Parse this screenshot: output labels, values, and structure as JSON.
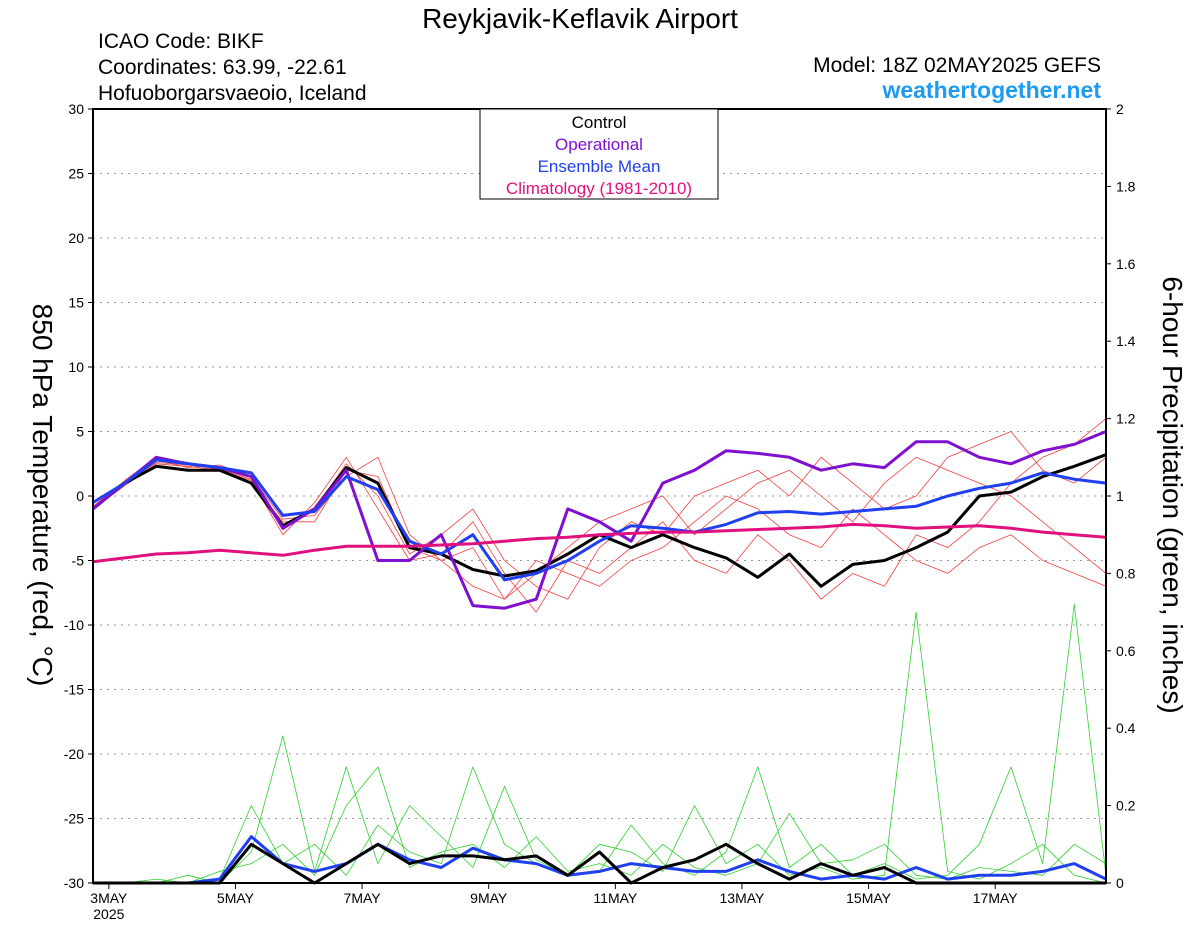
{
  "chart_data": {
    "type": "line",
    "title": "Reykjavik-Keflavik Airport",
    "info_left": [
      "ICAO Code: BIKF",
      "Coordinates: 63.99, -22.61",
      "Hofuoborgarsvaeoio, Iceland"
    ],
    "model": "Model: 18Z 02MAY2025 GEFS",
    "site": "weathertogether.net",
    "y_label": "850 hPa Temperature (red, °C)",
    "y2_label": "6-hour Precipitation (green, inches)",
    "x_year_label": "2025",
    "xlim": [
      2.75,
      18.75
    ],
    "xticks": [
      {
        "value": 3,
        "label": "3MAY"
      },
      {
        "value": 5,
        "label": "5MAY"
      },
      {
        "value": 7,
        "label": "7MAY"
      },
      {
        "value": 9,
        "label": "9MAY"
      },
      {
        "value": 11,
        "label": "11MAY"
      },
      {
        "value": 13,
        "label": "13MAY"
      },
      {
        "value": 15,
        "label": "15MAY"
      },
      {
        "value": 17,
        "label": "17MAY"
      }
    ],
    "ylim": [
      -30,
      30
    ],
    "yticks": [
      -30,
      -25,
      -20,
      -15,
      -10,
      -5,
      0,
      5,
      10,
      15,
      20,
      25,
      30
    ],
    "y2lim": [
      0,
      2
    ],
    "y2ticks": [
      0,
      0.2,
      0.4,
      0.6,
      0.8,
      1,
      1.2,
      1.4,
      1.6,
      1.8,
      2
    ],
    "grid": true,
    "x": [
      2.75,
      3.25,
      3.75,
      4.25,
      4.75,
      5.25,
      5.75,
      6.25,
      6.75,
      7.25,
      7.75,
      8.25,
      8.75,
      9.25,
      9.75,
      10.25,
      10.75,
      11.25,
      11.75,
      12.25,
      12.75,
      13.25,
      13.75,
      14.25,
      14.75,
      15.25,
      15.75,
      16.25,
      16.75,
      17.25,
      17.75,
      18.25,
      18.75
    ],
    "series": [
      {
        "color": "#f04040",
        "values": [
          -1,
          0.8,
          2.5,
          2.3,
          2,
          1,
          -2,
          -2,
          2,
          1.5,
          -4,
          -5,
          -7,
          -8,
          -6,
          -4,
          -2,
          -1,
          0,
          -3,
          -1,
          1,
          2,
          0,
          -2,
          1,
          3,
          2,
          1,
          0,
          -2,
          -4,
          -6
        ]
      },
      {
        "color": "#f04040",
        "values": [
          -0.8,
          1.2,
          3,
          2.6,
          2,
          1.2,
          -3,
          -0.5,
          3,
          -1,
          -5,
          -4.5,
          -2,
          -6,
          -9,
          -5,
          -6,
          -4,
          -2,
          -5,
          -6,
          -3,
          -5,
          -8,
          -6,
          -7,
          -3,
          -4,
          -2,
          1,
          3,
          4,
          6
        ]
      },
      {
        "color": "#f04040",
        "values": [
          -1,
          1,
          2.8,
          2.2,
          2.4,
          1.5,
          -1.8,
          -1.5,
          1.5,
          3,
          -3,
          -5,
          -4,
          -8,
          -5,
          -6,
          -7,
          -5,
          -4,
          -2,
          0,
          -1,
          -3,
          -4,
          -1,
          -3,
          -5,
          -6,
          -4,
          -3,
          -5,
          -6,
          -7
        ]
      },
      {
        "color": "#f04040",
        "values": [
          -0.9,
          0.9,
          2.6,
          2.4,
          2.1,
          1.3,
          -2.6,
          -1,
          2.5,
          0,
          -4.5,
          -3,
          -1,
          -5,
          -7,
          -8,
          -4,
          -2,
          -3,
          0,
          1,
          2,
          0,
          3,
          1,
          -1,
          0,
          3,
          4,
          5,
          2,
          1,
          3
        ]
      },
      {
        "color": "#30d030",
        "axis": "y2",
        "values": [
          0,
          0,
          0,
          0,
          0.01,
          0.2,
          0.05,
          0.1,
          0.02,
          0.15,
          0.08,
          0.05,
          0.3,
          0.1,
          0.05,
          0.02,
          0.1,
          0.08,
          0.03,
          0.2,
          0.05,
          0.1,
          0.02,
          0.04,
          0.01,
          0.02,
          0.7,
          0.03,
          0.01,
          0.05,
          0.1,
          0.02,
          0
        ]
      },
      {
        "color": "#30d030",
        "axis": "y2",
        "values": [
          0,
          0,
          0,
          0.02,
          0,
          0.08,
          0.38,
          0.03,
          0.3,
          0.05,
          0.2,
          0.12,
          0.04,
          0.25,
          0.06,
          0.02,
          0.03,
          0.15,
          0.05,
          0.02,
          0.08,
          0.3,
          0.04,
          0.1,
          0.02,
          0.05,
          0.01,
          0.02,
          0.1,
          0.3,
          0.05,
          0.72,
          0.02
        ]
      },
      {
        "color": "#30d030",
        "axis": "y2",
        "values": [
          0,
          0,
          0.01,
          0,
          0.03,
          0.05,
          0.1,
          0.02,
          0.2,
          0.3,
          0.04,
          0.08,
          0.1,
          0.04,
          0.12,
          0.03,
          0.05,
          0.02,
          0.1,
          0.04,
          0.02,
          0.05,
          0.18,
          0.05,
          0.06,
          0.1,
          0.02,
          0.01,
          0.04,
          0.03,
          0.02,
          0.1,
          0.05
        ]
      },
      {
        "color": "#2040f0",
        "axis": "y2",
        "values": [
          0,
          0,
          0,
          0,
          0.01,
          0.12,
          0.05,
          0.03,
          0.05,
          0.1,
          0.06,
          0.04,
          0.09,
          0.06,
          0.05,
          0.02,
          0.03,
          0.05,
          0.04,
          0.03,
          0.03,
          0.06,
          0.03,
          0.01,
          0.02,
          0.01,
          0.04,
          0.01,
          0.02,
          0.02,
          0.03,
          0.05,
          0.01
        ]
      },
      {
        "color": "#000000",
        "axis": "y2",
        "values": [
          0,
          0,
          0,
          0,
          0,
          0.1,
          0.05,
          0,
          0.05,
          0.1,
          0.05,
          0.07,
          0.07,
          0.06,
          0.07,
          0.02,
          0.08,
          0,
          0.04,
          0.06,
          0.1,
          0.05,
          0.01,
          0.05,
          0.02,
          0.04,
          0,
          0,
          0,
          0,
          0,
          0,
          0
        ]
      },
      {
        "name": "Control",
        "color": "#000000",
        "values": [
          -1,
          1,
          2.3,
          2,
          2,
          1,
          -2.3,
          -1,
          2.2,
          1,
          -4,
          -4.5,
          -5.7,
          -6.2,
          -5.8,
          -4.5,
          -3,
          -4,
          -3,
          -4,
          -4.8,
          -6.3,
          -4.5,
          -7,
          -5.3,
          -5,
          -4,
          -2.8,
          0,
          0.3,
          1.5,
          2.3,
          3.2
        ]
      },
      {
        "name": "Operational",
        "color": "#8010d0",
        "values": [
          -1,
          1,
          3,
          2.5,
          2.2,
          1.5,
          -2.5,
          -1,
          2,
          -5,
          -5,
          -3,
          -8.5,
          -8.7,
          -8,
          -1,
          -2,
          -3.5,
          1,
          2,
          3.5,
          3.3,
          3,
          2,
          2.5,
          2.2,
          4.2,
          4.2,
          3,
          2.5,
          3.5,
          4,
          5
        ]
      },
      {
        "name": "Ensemble Mean",
        "color": "#2040f0",
        "values": [
          -0.5,
          1,
          2.8,
          2.5,
          2.2,
          1.8,
          -1.5,
          -1.2,
          1.5,
          0.5,
          -3.5,
          -4.5,
          -3,
          -6.5,
          -6,
          -5,
          -3.5,
          -2.3,
          -2.5,
          -2.8,
          -2.2,
          -1.3,
          -1.2,
          -1.4,
          -1.2,
          -1,
          -0.8,
          0,
          0.6,
          1,
          1.8,
          1.3,
          1
        ]
      },
      {
        "name": "Climatology (1981-2010)",
        "color": "#e0107f",
        "values": [
          -5.1,
          -4.8,
          -4.5,
          -4.4,
          -4.2,
          -4.4,
          -4.6,
          -4.2,
          -3.9,
          -3.9,
          -3.9,
          -3.8,
          -3.7,
          -3.5,
          -3.3,
          -3.2,
          -3,
          -2.9,
          -2.8,
          -2.8,
          -2.7,
          -2.6,
          -2.5,
          -2.4,
          -2.2,
          -2.3,
          -2.5,
          -2.4,
          -2.3,
          -2.5,
          -2.8,
          -3,
          -3.2
        ]
      }
    ]
  }
}
